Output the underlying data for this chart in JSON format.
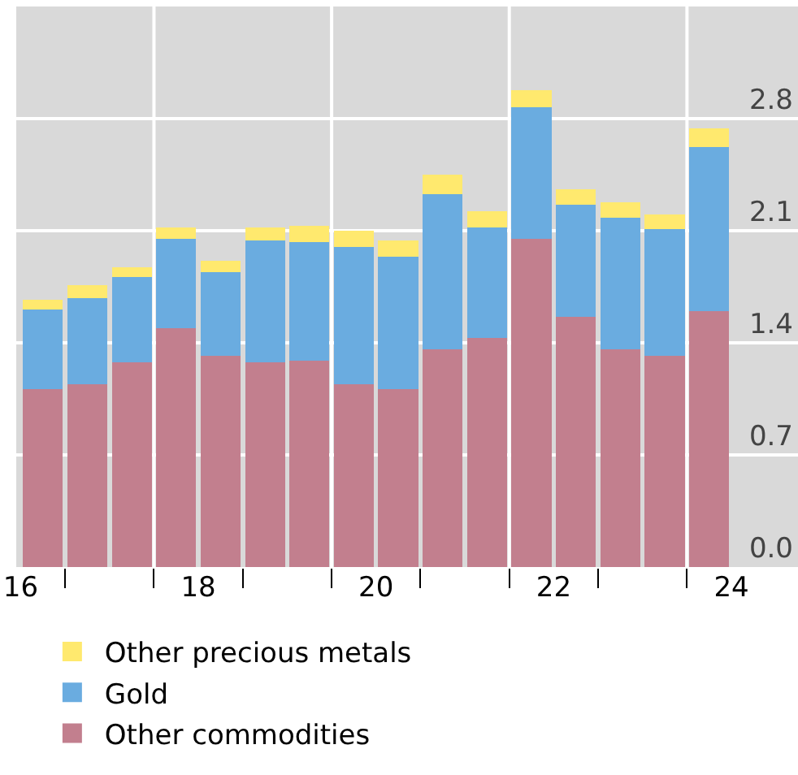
{
  "chart_data": {
    "type": "bar",
    "stacked": true,
    "x": [
      16.75,
      17.25,
      17.75,
      18.25,
      18.75,
      19.25,
      19.75,
      20.25,
      20.75,
      21.25,
      21.75,
      22.25,
      22.75,
      23.25,
      23.75,
      24.25
    ],
    "series": [
      {
        "name": "Other commodities",
        "color": "#c27f8e",
        "values": [
          1.11,
          1.14,
          1.28,
          1.49,
          1.32,
          1.28,
          1.29,
          1.14,
          1.11,
          1.36,
          1.43,
          2.05,
          1.56,
          1.36,
          1.32,
          1.6
        ]
      },
      {
        "name": "Gold",
        "color": "#6aace0",
        "values": [
          0.5,
          0.54,
          0.53,
          0.56,
          0.52,
          0.76,
          0.74,
          0.86,
          0.83,
          0.97,
          0.69,
          0.82,
          0.7,
          0.82,
          0.79,
          1.02
        ]
      },
      {
        "name": "Other precious metals",
        "color": "#ffe96e",
        "values": [
          0.06,
          0.08,
          0.06,
          0.07,
          0.07,
          0.08,
          0.1,
          0.1,
          0.1,
          0.12,
          0.1,
          0.11,
          0.1,
          0.1,
          0.09,
          0.12
        ]
      }
    ],
    "xlim": [
      16.45,
      25.25
    ],
    "xticks": [
      {
        "value": 16.5,
        "label": "16"
      },
      {
        "value": 17,
        "label": null
      },
      {
        "value": 18,
        "label": null
      },
      {
        "value": 18.5,
        "label": "18"
      },
      {
        "value": 19,
        "label": null
      },
      {
        "value": 20,
        "label": null
      },
      {
        "value": 20.5,
        "label": "20"
      },
      {
        "value": 21,
        "label": null
      },
      {
        "value": 22,
        "label": null
      },
      {
        "value": 22.5,
        "label": "22"
      },
      {
        "value": 23,
        "label": null
      },
      {
        "value": 24,
        "label": null
      },
      {
        "value": 24.5,
        "label": "24"
      }
    ],
    "ylim": [
      0,
      3.5
    ],
    "yticks": [
      {
        "value": 0,
        "label": "0.0"
      },
      0.7,
      1.4,
      2.1,
      2.8
    ],
    "grid": "y",
    "ref_lines": [
      {
        "axis": "x",
        "value": 18,
        "color": "#ffffff"
      },
      {
        "axis": "x",
        "value": 20,
        "color": "#ffffff"
      },
      {
        "axis": "x",
        "value": 22,
        "color": "#ffffff"
      },
      {
        "axis": "x",
        "value": 24,
        "color": "#ffffff"
      }
    ],
    "legend": "bottom"
  }
}
